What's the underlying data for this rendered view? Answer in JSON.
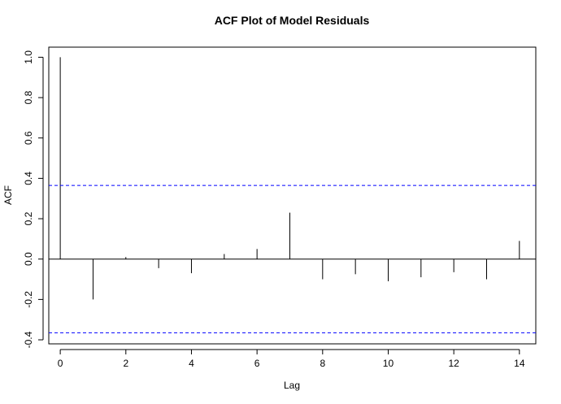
{
  "chart_data": {
    "type": "bar",
    "title": "ACF Plot of Model Residuals",
    "xlabel": "Lag",
    "ylabel": "ACF",
    "x": [
      0,
      1,
      2,
      3,
      4,
      5,
      6,
      7,
      8,
      9,
      10,
      11,
      12,
      13,
      14
    ],
    "values": [
      1.0,
      -0.2,
      0.01,
      -0.045,
      -0.07,
      0.025,
      0.05,
      0.23,
      -0.1,
      -0.075,
      -0.11,
      -0.09,
      -0.065,
      -0.1,
      0.09
    ],
    "confidence_band": [
      0.365,
      -0.365
    ],
    "confidence_color": "#0000ff",
    "bar_color": "#000000",
    "xlim": [
      -0.35,
      14.5
    ],
    "ylim": [
      -0.42,
      1.05
    ],
    "xticks": [
      "0",
      "2",
      "4",
      "6",
      "8",
      "10",
      "12",
      "14"
    ],
    "yticks": [
      "-0.4",
      "-0.2",
      "0.0",
      "0.2",
      "0.4",
      "0.6",
      "0.8",
      "1.0"
    ],
    "grid": false
  }
}
